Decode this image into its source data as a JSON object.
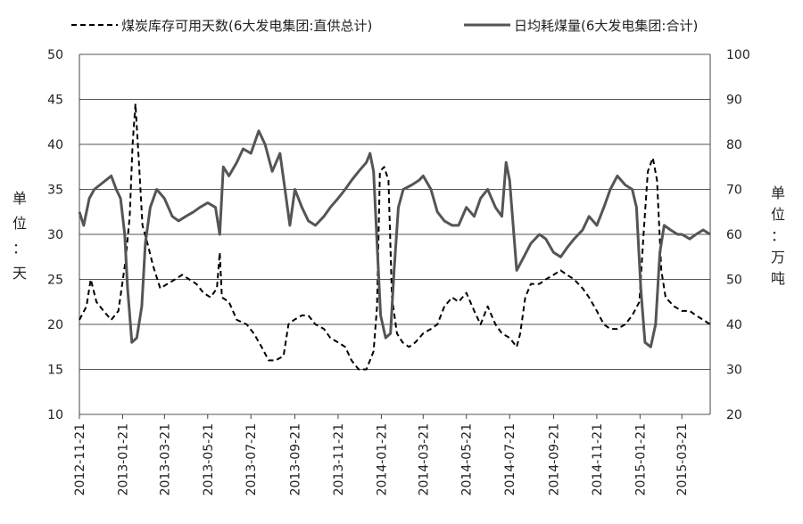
{
  "chart_data": {
    "type": "line",
    "legend": {
      "placement": "top",
      "items": [
        {
          "label": "煤炭库存可用天数(6大发电集团:直供总计)",
          "style": "dashed"
        },
        {
          "label": "日均耗煤量(6大发电集团:合计)",
          "style": "solid"
        }
      ]
    },
    "left_axis": {
      "unit_label": [
        "单",
        "位",
        "：",
        "天"
      ],
      "ylim": [
        10,
        50
      ],
      "ticks": [
        "10",
        "15",
        "20",
        "25",
        "30",
        "35",
        "40",
        "45",
        "50"
      ]
    },
    "right_axis": {
      "unit_label": [
        "单",
        "位",
        "：",
        "万",
        "吨"
      ],
      "ylim": [
        20,
        100
      ],
      "ticks": [
        "20",
        "30",
        "40",
        "50",
        "60",
        "70",
        "80",
        "90",
        "100"
      ]
    },
    "x_axis": {
      "tick_labels": [
        "2012-11-21",
        "2013-01-21",
        "2013-03-21",
        "2013-05-21",
        "2013-07-21",
        "2013-09-21",
        "2013-11-21",
        "2014-01-21",
        "2014-03-21",
        "2014-05-21",
        "2014-07-21",
        "2014-09-21",
        "2014-11-21",
        "2015-01-21",
        "2015-03-21"
      ],
      "start": "2012-11-21",
      "end": "2015-04-30"
    },
    "grid": "horizontal",
    "series": [
      {
        "name": "煤炭库存可用天数(6大发电集团:直供总计)",
        "axis": "left",
        "color": "#000000",
        "dash": "6,4",
        "points": [
          [
            "2012-11-21",
            20.5
          ],
          [
            "2012-12-01",
            22
          ],
          [
            "2012-12-07",
            25
          ],
          [
            "2012-12-15",
            22.5
          ],
          [
            "2012-12-25",
            21.5
          ],
          [
            "2013-01-05",
            20.5
          ],
          [
            "2013-01-15",
            21.5
          ],
          [
            "2013-01-25",
            27
          ],
          [
            "2013-01-31",
            32
          ],
          [
            "2013-02-04",
            40
          ],
          [
            "2013-02-08",
            44.5
          ],
          [
            "2013-02-13",
            38
          ],
          [
            "2013-02-18",
            31
          ],
          [
            "2013-02-25",
            29
          ],
          [
            "2013-03-05",
            26.5
          ],
          [
            "2013-03-15",
            24
          ],
          [
            "2013-03-25",
            24.5
          ],
          [
            "2013-04-05",
            25
          ],
          [
            "2013-04-15",
            25.5
          ],
          [
            "2013-04-25",
            25
          ],
          [
            "2013-05-05",
            24.5
          ],
          [
            "2013-05-15",
            23.5
          ],
          [
            "2013-05-25",
            23
          ],
          [
            "2013-06-03",
            24
          ],
          [
            "2013-06-07",
            28
          ],
          [
            "2013-06-10",
            23
          ],
          [
            "2013-06-20",
            22.5
          ],
          [
            "2013-07-01",
            20.5
          ],
          [
            "2013-07-15",
            20
          ],
          [
            "2013-07-25",
            19
          ],
          [
            "2013-08-05",
            17.5
          ],
          [
            "2013-08-15",
            16
          ],
          [
            "2013-08-25",
            16
          ],
          [
            "2013-09-05",
            16.5
          ],
          [
            "2013-09-12",
            20
          ],
          [
            "2013-09-20",
            20.5
          ],
          [
            "2013-10-01",
            21
          ],
          [
            "2013-10-10",
            21
          ],
          [
            "2013-10-20",
            20
          ],
          [
            "2013-11-01",
            19.5
          ],
          [
            "2013-11-10",
            18.5
          ],
          [
            "2013-11-21",
            18
          ],
          [
            "2013-12-01",
            17.5
          ],
          [
            "2013-12-10",
            16
          ],
          [
            "2013-12-20",
            15
          ],
          [
            "2013-12-31",
            15
          ],
          [
            "2014-01-10",
            17
          ],
          [
            "2014-01-15",
            22
          ],
          [
            "2014-01-19",
            37
          ],
          [
            "2014-01-25",
            37.5
          ],
          [
            "2014-01-31",
            36
          ],
          [
            "2014-02-05",
            23
          ],
          [
            "2014-02-12",
            19
          ],
          [
            "2014-02-20",
            18
          ],
          [
            "2014-03-01",
            17.5
          ],
          [
            "2014-03-10",
            18
          ],
          [
            "2014-03-21",
            19
          ],
          [
            "2014-04-01",
            19.5
          ],
          [
            "2014-04-10",
            20
          ],
          [
            "2014-04-20",
            22
          ],
          [
            "2014-05-01",
            23
          ],
          [
            "2014-05-10",
            22.5
          ],
          [
            "2014-05-21",
            23.5
          ],
          [
            "2014-06-01",
            21.5
          ],
          [
            "2014-06-10",
            20
          ],
          [
            "2014-06-20",
            22
          ],
          [
            "2014-07-01",
            20
          ],
          [
            "2014-07-10",
            19
          ],
          [
            "2014-07-21",
            18.5
          ],
          [
            "2014-07-31",
            17.5
          ],
          [
            "2014-08-05",
            19
          ],
          [
            "2014-08-12",
            23
          ],
          [
            "2014-08-20",
            24.5
          ],
          [
            "2014-09-01",
            24.5
          ],
          [
            "2014-09-10",
            25
          ],
          [
            "2014-09-21",
            25.5
          ],
          [
            "2014-10-01",
            26
          ],
          [
            "2014-10-10",
            25.5
          ],
          [
            "2014-10-20",
            25
          ],
          [
            "2014-11-01",
            24
          ],
          [
            "2014-11-10",
            23
          ],
          [
            "2014-11-21",
            21.5
          ],
          [
            "2014-12-01",
            20
          ],
          [
            "2014-12-10",
            19.5
          ],
          [
            "2014-12-20",
            19.5
          ],
          [
            "2014-12-31",
            20
          ],
          [
            "2015-01-10",
            21
          ],
          [
            "2015-01-20",
            22.5
          ],
          [
            "2015-01-26",
            30
          ],
          [
            "2015-02-01",
            37
          ],
          [
            "2015-02-08",
            38.5
          ],
          [
            "2015-02-14",
            36
          ],
          [
            "2015-02-20",
            26
          ],
          [
            "2015-02-26",
            23
          ],
          [
            "2015-03-10",
            22
          ],
          [
            "2015-03-21",
            21.5
          ],
          [
            "2015-04-01",
            21.5
          ],
          [
            "2015-04-10",
            21
          ],
          [
            "2015-04-20",
            20.5
          ],
          [
            "2015-04-30",
            20
          ]
        ]
      },
      {
        "name": "日均耗煤量(6大发电集团:合计)",
        "axis": "right",
        "color": "#555555",
        "dash": "",
        "points": [
          [
            "2012-11-21",
            65
          ],
          [
            "2012-11-27",
            62
          ],
          [
            "2012-12-05",
            68
          ],
          [
            "2012-12-12",
            70
          ],
          [
            "2012-12-20",
            71
          ],
          [
            "2012-12-28",
            72
          ],
          [
            "2013-01-05",
            73
          ],
          [
            "2013-01-12",
            70
          ],
          [
            "2013-01-18",
            68
          ],
          [
            "2013-01-24",
            60
          ],
          [
            "2013-01-28",
            48
          ],
          [
            "2013-02-03",
            36
          ],
          [
            "2013-02-10",
            37
          ],
          [
            "2013-02-17",
            44
          ],
          [
            "2013-02-22",
            58
          ],
          [
            "2013-03-01",
            66
          ],
          [
            "2013-03-10",
            70
          ],
          [
            "2013-03-21",
            68
          ],
          [
            "2013-04-01",
            64
          ],
          [
            "2013-04-10",
            63
          ],
          [
            "2013-04-20",
            64
          ],
          [
            "2013-05-01",
            65
          ],
          [
            "2013-05-10",
            66
          ],
          [
            "2013-05-21",
            67
          ],
          [
            "2013-06-01",
            66
          ],
          [
            "2013-06-07",
            60
          ],
          [
            "2013-06-12",
            75
          ],
          [
            "2013-06-20",
            73
          ],
          [
            "2013-07-01",
            76
          ],
          [
            "2013-07-10",
            79
          ],
          [
            "2013-07-21",
            78
          ],
          [
            "2013-08-01",
            83
          ],
          [
            "2013-08-10",
            80
          ],
          [
            "2013-08-20",
            74
          ],
          [
            "2013-08-31",
            78
          ],
          [
            "2013-09-07",
            70
          ],
          [
            "2013-09-14",
            62
          ],
          [
            "2013-09-21",
            70
          ],
          [
            "2013-10-01",
            66
          ],
          [
            "2013-10-10",
            63
          ],
          [
            "2013-10-20",
            62
          ],
          [
            "2013-11-01",
            64
          ],
          [
            "2013-11-10",
            66
          ],
          [
            "2013-11-21",
            68
          ],
          [
            "2013-12-01",
            70
          ],
          [
            "2013-12-10",
            72
          ],
          [
            "2013-12-20",
            74
          ],
          [
            "2013-12-31",
            76
          ],
          [
            "2014-01-05",
            78
          ],
          [
            "2014-01-10",
            74
          ],
          [
            "2014-01-15",
            58
          ],
          [
            "2014-01-20",
            42
          ],
          [
            "2014-01-27",
            37
          ],
          [
            "2014-02-03",
            38
          ],
          [
            "2014-02-08",
            52
          ],
          [
            "2014-02-14",
            66
          ],
          [
            "2014-02-21",
            70
          ],
          [
            "2014-03-05",
            71
          ],
          [
            "2014-03-15",
            72
          ],
          [
            "2014-03-21",
            73
          ],
          [
            "2014-04-01",
            70
          ],
          [
            "2014-04-10",
            65
          ],
          [
            "2014-04-20",
            63
          ],
          [
            "2014-05-01",
            62
          ],
          [
            "2014-05-10",
            62
          ],
          [
            "2014-05-21",
            66
          ],
          [
            "2014-06-01",
            64
          ],
          [
            "2014-06-10",
            68
          ],
          [
            "2014-06-20",
            70
          ],
          [
            "2014-07-01",
            66
          ],
          [
            "2014-07-10",
            64
          ],
          [
            "2014-07-16",
            76
          ],
          [
            "2014-07-21",
            72
          ],
          [
            "2014-07-31",
            52
          ],
          [
            "2014-08-10",
            55
          ],
          [
            "2014-08-20",
            58
          ],
          [
            "2014-09-01",
            60
          ],
          [
            "2014-09-10",
            59
          ],
          [
            "2014-09-21",
            56
          ],
          [
            "2014-10-01",
            55
          ],
          [
            "2014-10-10",
            57
          ],
          [
            "2014-10-20",
            59
          ],
          [
            "2014-11-01",
            61
          ],
          [
            "2014-11-10",
            64
          ],
          [
            "2014-11-21",
            62
          ],
          [
            "2014-12-01",
            66
          ],
          [
            "2014-12-10",
            70
          ],
          [
            "2014-12-20",
            73
          ],
          [
            "2014-12-31",
            71
          ],
          [
            "2015-01-10",
            70
          ],
          [
            "2015-01-16",
            66
          ],
          [
            "2015-01-22",
            48
          ],
          [
            "2015-01-28",
            36
          ],
          [
            "2015-02-05",
            35
          ],
          [
            "2015-02-12",
            40
          ],
          [
            "2015-02-18",
            56
          ],
          [
            "2015-02-24",
            62
          ],
          [
            "2015-03-05",
            61
          ],
          [
            "2015-03-15",
            60
          ],
          [
            "2015-03-21",
            60
          ],
          [
            "2015-04-01",
            59
          ],
          [
            "2015-04-10",
            60
          ],
          [
            "2015-04-20",
            61
          ],
          [
            "2015-04-30",
            60
          ]
        ]
      }
    ]
  }
}
